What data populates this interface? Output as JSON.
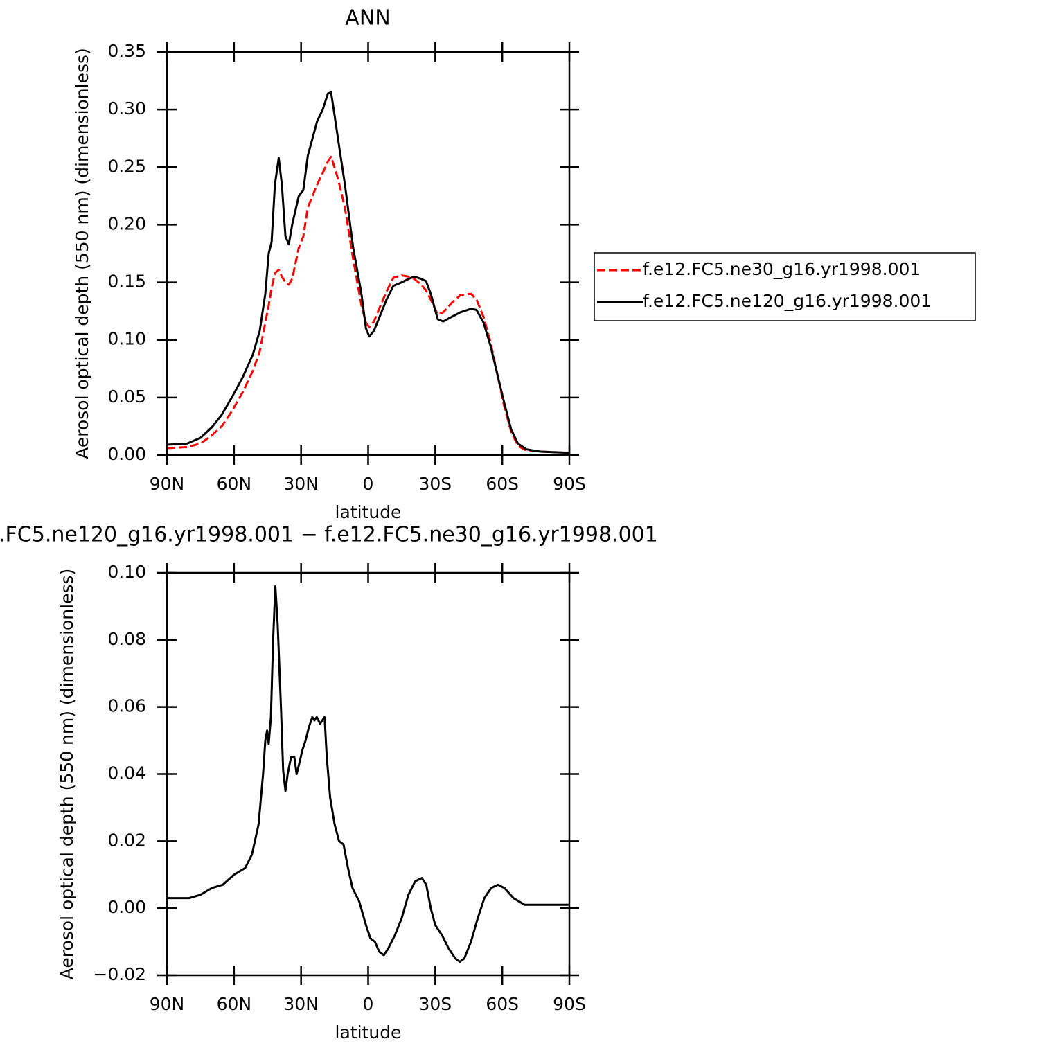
{
  "chart_data": [
    {
      "type": "line",
      "title": "ANN",
      "xlabel": "latitude",
      "ylabel": "Aerosol optical depth (550 nm) (dimensionless)",
      "x": [
        90,
        81,
        75,
        70,
        65.5,
        61,
        56,
        51.6,
        48.5,
        46,
        44.5,
        43.2,
        41.7,
        40,
        38.6,
        37,
        35.5,
        34,
        31,
        29,
        27,
        22.8,
        20.3,
        18,
        16.6,
        15.4,
        13.5,
        10.4,
        6.7,
        3,
        1,
        -0.5,
        -2.6,
        -5.1,
        -8.2,
        -11.3,
        -15,
        -18.1,
        -20.6,
        -23.7,
        -25.9,
        -28,
        -31.1,
        -33.6,
        -37.3,
        -41.3,
        -46,
        -48.5,
        -51.6,
        -54.7,
        -57.8,
        -60.9,
        -64,
        -67,
        -70.8,
        -77,
        -90
      ],
      "series": [
        {
          "name": "f.e12.FC5.ne30_g16.yr1998.001",
          "color": "#ff0000",
          "dash": "dashed",
          "values": [
            0.006,
            0.007,
            0.01,
            0.017,
            0.025,
            0.038,
            0.055,
            0.073,
            0.09,
            0.115,
            0.13,
            0.145,
            0.158,
            0.161,
            0.155,
            0.15,
            0.148,
            0.153,
            0.18,
            0.19,
            0.215,
            0.235,
            0.245,
            0.255,
            0.259,
            0.252,
            0.24,
            0.215,
            0.17,
            0.13,
            0.115,
            0.111,
            0.116,
            0.128,
            0.142,
            0.154,
            0.156,
            0.155,
            0.153,
            0.148,
            0.143,
            0.135,
            0.122,
            0.124,
            0.132,
            0.139,
            0.14,
            0.135,
            0.12,
            0.098,
            0.07,
            0.042,
            0.02,
            0.008,
            0.004,
            0.003,
            0.002
          ]
        },
        {
          "name": "f.e12.FC5.ne120_g16.yr1998.001",
          "color": "#000000",
          "dash": "solid",
          "values": [
            0.009,
            0.01,
            0.015,
            0.024,
            0.035,
            0.05,
            0.068,
            0.087,
            0.108,
            0.14,
            0.175,
            0.185,
            0.235,
            0.258,
            0.235,
            0.19,
            0.183,
            0.2,
            0.225,
            0.23,
            0.26,
            0.29,
            0.3,
            0.314,
            0.315,
            0.3,
            0.275,
            0.235,
            0.18,
            0.14,
            0.11,
            0.103,
            0.108,
            0.12,
            0.135,
            0.147,
            0.15,
            0.153,
            0.155,
            0.153,
            0.151,
            0.14,
            0.118,
            0.116,
            0.12,
            0.124,
            0.127,
            0.126,
            0.115,
            0.095,
            0.07,
            0.045,
            0.022,
            0.01,
            0.005,
            0.003,
            0.002
          ]
        }
      ],
      "xlim": [
        90,
        -90
      ],
      "xticks": [
        {
          "value": 90,
          "label": "90N"
        },
        {
          "value": 60,
          "label": "60N"
        },
        {
          "value": 30,
          "label": "30N"
        },
        0,
        {
          "value": -30,
          "label": "30S"
        },
        {
          "value": -60,
          "label": "60S"
        },
        {
          "value": -90,
          "label": "90S"
        }
      ],
      "ylim": [
        0,
        0.35
      ],
      "yticks": [
        {
          "value": 0,
          "label": "0.00"
        },
        0.05,
        {
          "value": 0.1,
          "label": "0.10"
        },
        0.15,
        {
          "value": 0.2,
          "label": "0.20"
        },
        0.25,
        {
          "value": 0.3,
          "label": "0.30"
        },
        0.35
      ],
      "legend": "right"
    },
    {
      "type": "line",
      "title": ".FC5.ne120_g16.yr1998.001 − f.e12.FC5.ne30_g16.yr1998.001",
      "xlabel": "latitude",
      "ylabel": "Aerosol optical depth (550 nm) (dimensionless)",
      "x": [
        90,
        80,
        75,
        70,
        65,
        60,
        55,
        52,
        49,
        47,
        46,
        45.2,
        44.5,
        43.5,
        42.5,
        41.5,
        40.5,
        39,
        38,
        37,
        36,
        34.5,
        33,
        32,
        30.5,
        29.5,
        28,
        26.5,
        25,
        24,
        23,
        21.5,
        20.5,
        19.5,
        18.5,
        17,
        15,
        13,
        11,
        9,
        7,
        4,
        1,
        -1,
        -3,
        -5,
        -7,
        -9,
        -12,
        -15,
        -18,
        -21,
        -24,
        -26,
        -28,
        -30,
        -33,
        -36,
        -39,
        -41,
        -43,
        -46,
        -49,
        -52,
        -55,
        -58,
        -61,
        -65,
        -70,
        -75,
        -80,
        -90
      ],
      "values": [
        0.003,
        0.003,
        0.004,
        0.006,
        0.007,
        0.01,
        0.012,
        0.016,
        0.025,
        0.04,
        0.05,
        0.053,
        0.049,
        0.057,
        0.08,
        0.096,
        0.085,
        0.06,
        0.041,
        0.035,
        0.04,
        0.045,
        0.045,
        0.04,
        0.044,
        0.047,
        0.05,
        0.054,
        0.057,
        0.056,
        0.057,
        0.055,
        0.056,
        0.057,
        0.045,
        0.033,
        0.025,
        0.02,
        0.019,
        0.012,
        0.006,
        0.002,
        -0.005,
        -0.009,
        -0.01,
        -0.013,
        -0.014,
        -0.012,
        -0.008,
        -0.003,
        0.004,
        0.008,
        0.009,
        0.007,
        0.0,
        -0.005,
        -0.008,
        -0.012,
        -0.015,
        -0.016,
        -0.015,
        -0.01,
        -0.003,
        0.003,
        0.006,
        0.007,
        0.006,
        0.003,
        0.001,
        0.001,
        0.001,
        0.001
      ],
      "color": "#000000",
      "xlim": [
        90,
        -90
      ],
      "xticks": [
        {
          "value": 90,
          "label": "90N"
        },
        {
          "value": 60,
          "label": "60N"
        },
        {
          "value": 30,
          "label": "30N"
        },
        0,
        {
          "value": -30,
          "label": "30S"
        },
        {
          "value": -60,
          "label": "60S"
        },
        {
          "value": -90,
          "label": "90S"
        }
      ],
      "ylim": [
        -0.02,
        0.1
      ],
      "yticks": [
        {
          "value": -0.02,
          "label": "−0.02"
        },
        {
          "value": 0,
          "label": "0.00"
        },
        0.02,
        0.04,
        0.06,
        0.08,
        {
          "value": 0.1,
          "label": "0.10"
        }
      ]
    }
  ]
}
